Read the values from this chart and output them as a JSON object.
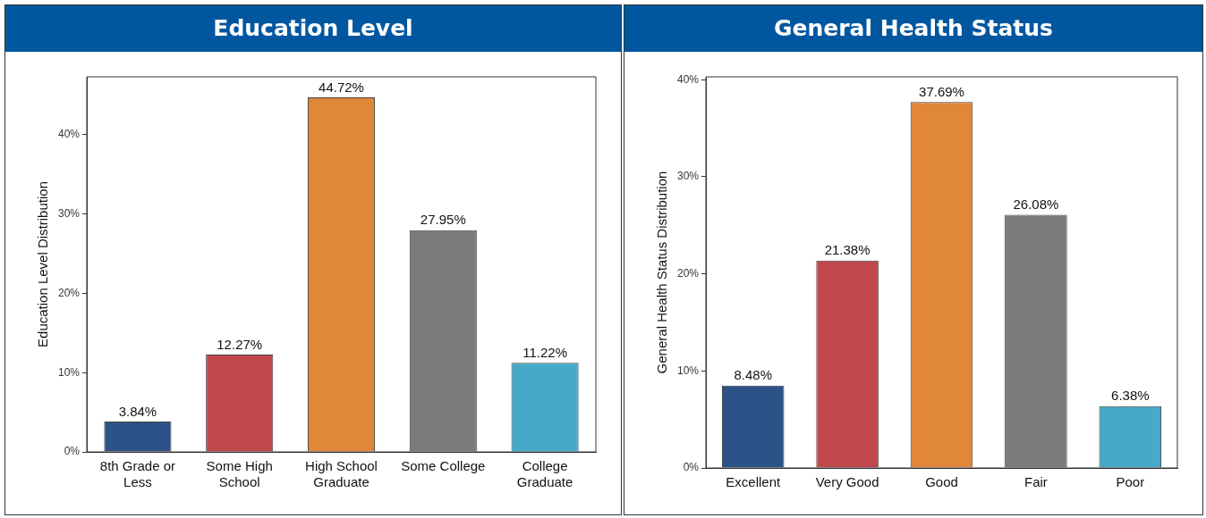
{
  "chart_data": [
    {
      "type": "bar",
      "title": "Education Level",
      "ylabel": "Education Level Distribution",
      "categories": [
        "8th Grade or Less",
        "Some High School",
        "High School Graduate",
        "Some College",
        "College Graduate"
      ],
      "values": [
        3.84,
        12.27,
        44.72,
        27.95,
        11.22
      ],
      "value_labels": [
        "3.84%",
        "12.27%",
        "44.72%",
        "27.95%",
        "11.22%"
      ],
      "colors": [
        "#2c5287",
        "#c2474c",
        "#e0873a",
        "#7b7b7b",
        "#45aac8"
      ],
      "ylim": [
        0,
        47.3
      ],
      "yticks": [
        {
          "value": 0,
          "label": "0%"
        },
        {
          "value": 10,
          "label": "10%"
        },
        {
          "value": 20,
          "label": "20%"
        },
        {
          "value": 30,
          "label": "30%"
        },
        {
          "value": 40,
          "label": "40%"
        }
      ],
      "grid": false,
      "legend": false
    },
    {
      "type": "bar",
      "title": "General Health Status",
      "ylabel": "General Health Status Distribution",
      "categories": [
        "Excellent",
        "Very Good",
        "Good",
        "Fair",
        "Poor"
      ],
      "values": [
        8.48,
        21.38,
        37.69,
        26.08,
        6.38
      ],
      "value_labels": [
        "8.48%",
        "21.38%",
        "37.69%",
        "26.08%",
        "6.38%"
      ],
      "colors": [
        "#2c5287",
        "#c2474c",
        "#e0873a",
        "#7b7b7b",
        "#45aac8"
      ],
      "ylim": [
        0,
        40.3
      ],
      "yticks": [
        {
          "value": 0,
          "label": "0%"
        },
        {
          "value": 10,
          "label": "10%"
        },
        {
          "value": 20,
          "label": "20%"
        },
        {
          "value": 30,
          "label": "30%"
        },
        {
          "value": 40,
          "label": "40%"
        }
      ],
      "grid": false,
      "legend": false
    }
  ]
}
